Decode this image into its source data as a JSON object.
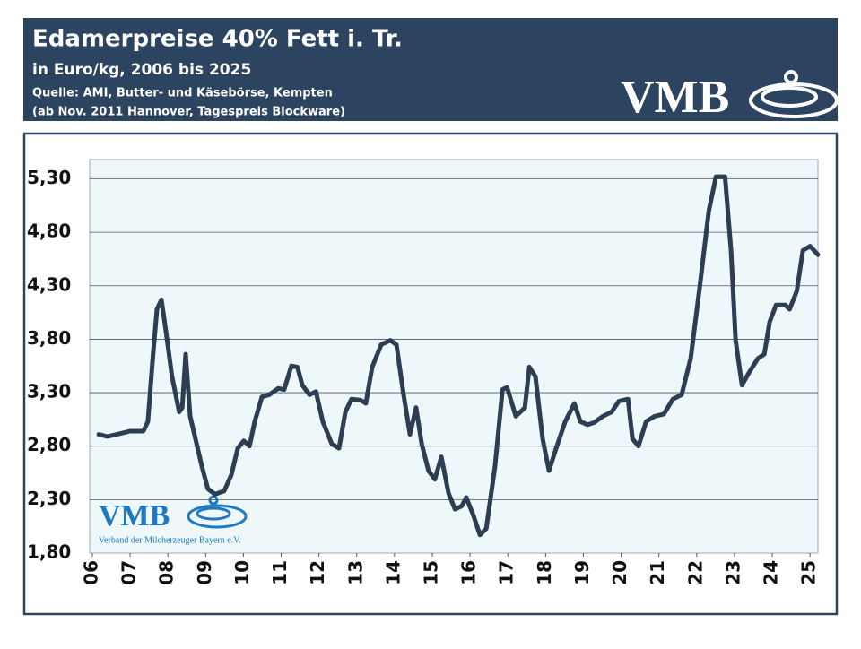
{
  "chart_data": {
    "type": "line",
    "title": "Edamerpreise  40% Fett i. Tr.",
    "subtitle": "in Euro/kg, 2006 bis 2025",
    "source": [
      "Quelle: AMI, Butter- und Käsebörse, Kempten",
      "(ab Nov. 2011 Hannover, Tagespreis Blockware)"
    ],
    "logo": "VMB",
    "watermark": {
      "logo": "VMB",
      "text": "Verband der Milcherzeuger Bayern e.V."
    },
    "xlim": [
      5.93,
      25.21
    ],
    "xticks": [
      {
        "value": 6,
        "label": "06"
      },
      {
        "value": 7,
        "label": "07"
      },
      {
        "value": 8,
        "label": "08"
      },
      {
        "value": 9,
        "label": "09"
      },
      10,
      11,
      12,
      13,
      14,
      15,
      16,
      17,
      18,
      19,
      20,
      21,
      22,
      23,
      24,
      25
    ],
    "ylim": [
      1.8,
      5.48
    ],
    "yticks": [
      {
        "value": 1.8,
        "label": "1,80"
      },
      {
        "value": 2.3,
        "label": "2,30"
      },
      {
        "value": 2.8,
        "label": "2,80"
      },
      {
        "value": 3.3,
        "label": "3,30"
      },
      {
        "value": 3.8,
        "label": "3,80"
      },
      {
        "value": 4.3,
        "label": "4,30"
      },
      {
        "value": 4.8,
        "label": "4,80"
      },
      {
        "value": 5.3,
        "label": "5,30"
      }
    ],
    "grid": true,
    "series": [
      {
        "color": "#2d3e52",
        "x": [
          6.17,
          6.4,
          6.76,
          7.0,
          7.35,
          7.47,
          7.6,
          7.71,
          7.83,
          7.95,
          8.11,
          8.3,
          8.38,
          8.47,
          8.59,
          8.73,
          8.9,
          9.06,
          9.25,
          9.49,
          9.68,
          9.85,
          10.01,
          10.16,
          10.3,
          10.49,
          10.68,
          10.92,
          11.08,
          11.27,
          11.43,
          11.56,
          11.75,
          11.92,
          12.1,
          12.34,
          12.53,
          12.7,
          12.86,
          13.1,
          13.24,
          13.41,
          13.65,
          13.89,
          14.05,
          14.24,
          14.41,
          14.57,
          14.72,
          14.9,
          15.07,
          15.24,
          15.43,
          15.6,
          15.78,
          15.9,
          16.09,
          16.26,
          16.43,
          16.66,
          16.86,
          16.98,
          17.21,
          17.45,
          17.57,
          17.73,
          17.92,
          18.09,
          18.28,
          18.52,
          18.76,
          18.92,
          19.11,
          19.28,
          19.52,
          19.75,
          19.94,
          20.18,
          20.3,
          20.46,
          20.66,
          20.89,
          21.13,
          21.37,
          21.6,
          21.84,
          22.08,
          22.32,
          22.51,
          22.75,
          22.91,
          23.03,
          23.2,
          23.39,
          23.62,
          23.79,
          23.93,
          24.1,
          24.34,
          24.46,
          24.65,
          24.81,
          25.0,
          25.21
        ],
        "values": [
          2.91,
          2.89,
          2.92,
          2.94,
          2.94,
          3.03,
          3.62,
          4.08,
          4.17,
          3.87,
          3.45,
          3.12,
          3.16,
          3.66,
          3.08,
          2.87,
          2.61,
          2.4,
          2.35,
          2.38,
          2.53,
          2.78,
          2.85,
          2.8,
          3.03,
          3.26,
          3.28,
          3.34,
          3.33,
          3.55,
          3.54,
          3.37,
          3.28,
          3.31,
          3.03,
          2.82,
          2.78,
          3.12,
          3.24,
          3.23,
          3.2,
          3.54,
          3.75,
          3.79,
          3.75,
          3.28,
          2.91,
          3.16,
          2.82,
          2.57,
          2.49,
          2.7,
          2.36,
          2.21,
          2.24,
          2.32,
          2.15,
          1.97,
          2.03,
          2.61,
          3.33,
          3.35,
          3.08,
          3.16,
          3.54,
          3.45,
          2.87,
          2.57,
          2.78,
          3.03,
          3.2,
          3.03,
          3.0,
          3.02,
          3.08,
          3.12,
          3.22,
          3.24,
          2.87,
          2.8,
          3.03,
          3.08,
          3.1,
          3.24,
          3.28,
          3.62,
          4.29,
          5.0,
          5.32,
          5.32,
          4.63,
          3.79,
          3.37,
          3.49,
          3.62,
          3.66,
          3.96,
          4.12,
          4.12,
          4.08,
          4.25,
          4.63,
          4.67,
          4.59
        ]
      }
    ]
  }
}
